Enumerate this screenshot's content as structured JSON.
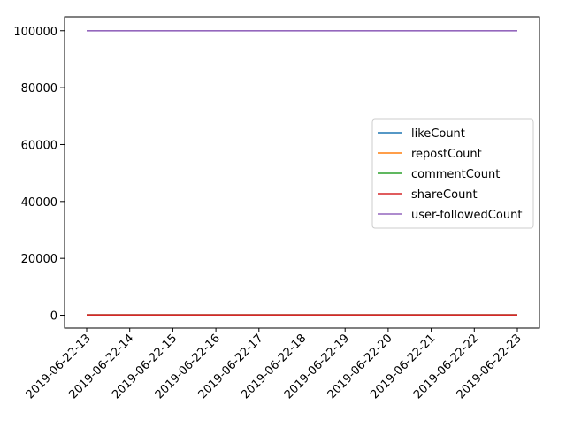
{
  "chart_data": {
    "type": "line",
    "title": "",
    "xlabel": "",
    "ylabel": "",
    "x": [
      "2019-06-22-13",
      "2019-06-22-14",
      "2019-06-22-15",
      "2019-06-22-16",
      "2019-06-22-17",
      "2019-06-22-18",
      "2019-06-22-19",
      "2019-06-22-20",
      "2019-06-22-21",
      "2019-06-22-22",
      "2019-06-22-23"
    ],
    "ylim": [
      -4500,
      104900
    ],
    "y_ticks": [
      0,
      20000,
      40000,
      60000,
      80000,
      100000
    ],
    "legend_position": "center-right",
    "grid": false,
    "series": [
      {
        "name": "likeCount",
        "color": "#1f77b4",
        "values": [
          100,
          100,
          100,
          100,
          100,
          100,
          100,
          100,
          100,
          100,
          100
        ]
      },
      {
        "name": "repostCount",
        "color": "#ff7f0e",
        "values": [
          100,
          100,
          100,
          100,
          100,
          100,
          100,
          100,
          100,
          100,
          100
        ]
      },
      {
        "name": "commentCount",
        "color": "#2ca02c",
        "values": [
          100,
          100,
          100,
          100,
          100,
          100,
          100,
          100,
          100,
          100,
          100
        ]
      },
      {
        "name": "shareCount",
        "color": "#d62728",
        "values": [
          100,
          100,
          100,
          100,
          100,
          100,
          100,
          100,
          100,
          100,
          100
        ]
      },
      {
        "name": "user-followedCount",
        "color": "#9467bd",
        "values": [
          100000,
          100000,
          100000,
          100000,
          100000,
          100000,
          100000,
          100000,
          100000,
          100000,
          100000
        ]
      }
    ]
  }
}
